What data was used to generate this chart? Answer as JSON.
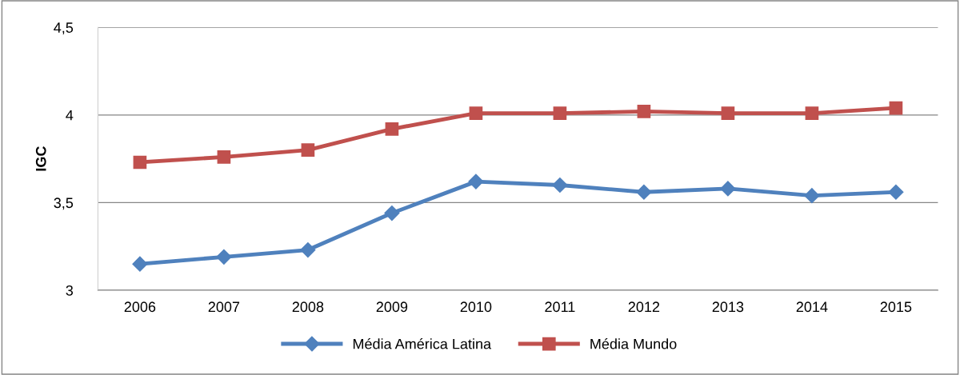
{
  "chart_data": {
    "type": "line",
    "ylabel": "IGC",
    "categories": [
      "2006",
      "2007",
      "2008",
      "2009",
      "2010",
      "2011",
      "2012",
      "2013",
      "2014",
      "2015"
    ],
    "series": [
      {
        "name": "Média América Latina",
        "color": "#4f81bd",
        "marker": "diamond",
        "values": [
          3.15,
          3.19,
          3.23,
          3.44,
          3.62,
          3.6,
          3.56,
          3.58,
          3.54,
          3.56
        ]
      },
      {
        "name": "Média Mundo",
        "color": "#c0504d",
        "marker": "square",
        "values": [
          3.73,
          3.76,
          3.8,
          3.92,
          4.01,
          4.01,
          4.02,
          4.01,
          4.01,
          4.04
        ]
      }
    ],
    "ylim": [
      3,
      4.5
    ],
    "yticks": [
      3,
      {
        "value": 3.5,
        "label": "3,5"
      },
      4,
      {
        "value": 4.5,
        "label": "4,5"
      }
    ],
    "grid": "y",
    "legend": "bottom",
    "line_style": "solid"
  }
}
